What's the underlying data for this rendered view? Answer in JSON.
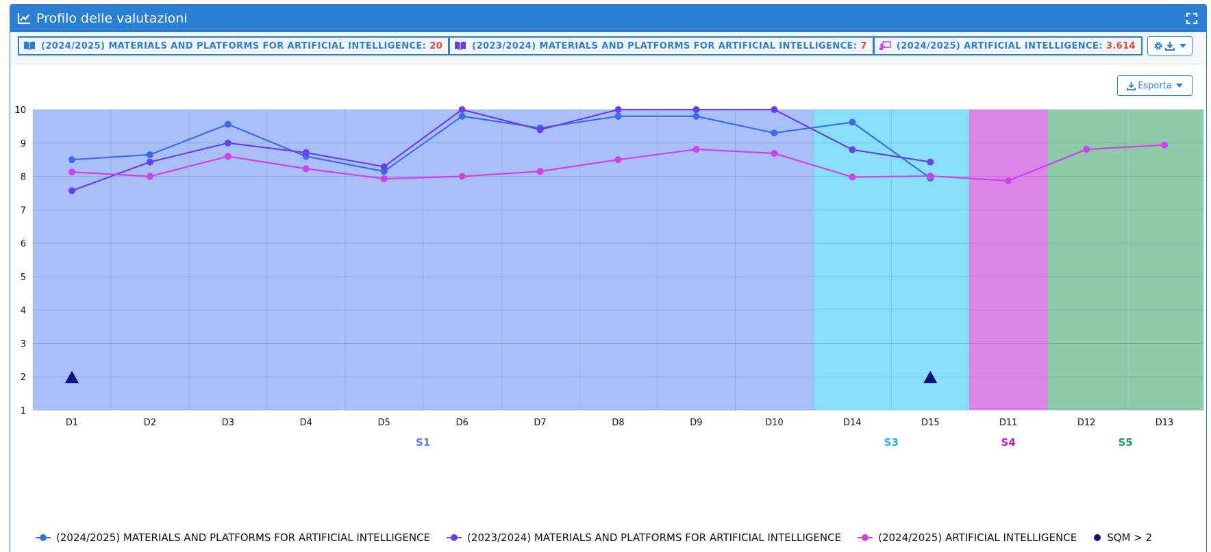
{
  "header": {
    "title": "Profilo delle valutazioni",
    "icon": "line-chart-icon",
    "fullscreen_icon": "expand-icon"
  },
  "toolbar": {
    "chips": [
      {
        "label": "(2024/2025) MATERIALS AND PLATFORMS FOR ARTIFICIAL INTELLIGENCE:",
        "value": "20",
        "icon": "book-icon"
      },
      {
        "label": "(2023/2024) MATERIALS AND PLATFORMS FOR ARTIFICIAL INTELLIGENCE:",
        "value": "7",
        "icon": "book-icon"
      },
      {
        "label": "(2024/2025) ARTIFICIAL INTELLIGENCE:",
        "value": "3.614",
        "icon": "teacher-icon"
      }
    ],
    "settings_icons": [
      "gear-icon",
      "download-icon",
      "caret-down-icon"
    ]
  },
  "export": {
    "label": "Esporta",
    "icon": "download-icon"
  },
  "colors": {
    "header": "#2a7fd4",
    "chip_value": "#e8463a",
    "series": [
      "#3b6cf0",
      "#6a3ee8",
      "#d13ff0"
    ],
    "sqm_marker": "#0a1580",
    "bands": [
      "#a9bff8",
      "#87dff8",
      "#dd84e8",
      "#8ecba8"
    ],
    "band_labels": [
      "#5b7bf0",
      "#1fb6ec",
      "#b51fcf",
      "#1d9a59"
    ]
  },
  "chart_data": {
    "type": "line",
    "categories": [
      "D1",
      "D2",
      "D3",
      "D4",
      "D5",
      "D6",
      "D7",
      "D8",
      "D9",
      "D10",
      "D14",
      "D15",
      "D11",
      "D12",
      "D13"
    ],
    "ylim": [
      1,
      10
    ],
    "yticks": [
      1,
      2,
      3,
      4,
      5,
      6,
      7,
      8,
      9,
      10
    ],
    "grid": true,
    "groups": [
      {
        "name": "S1",
        "from": "D1",
        "to": "D10"
      },
      {
        "name": "S3",
        "from": "D14",
        "to": "D15"
      },
      {
        "name": "S4",
        "from": "D11",
        "to": "D11"
      },
      {
        "name": "S5",
        "from": "D12",
        "to": "D13"
      }
    ],
    "series": [
      {
        "name": "(2024/2025) MATERIALS AND PLATFORMS FOR ARTIFICIAL INTELLIGENCE",
        "values": [
          8.5,
          8.65,
          9.56,
          8.6,
          8.15,
          9.8,
          9.45,
          9.8,
          9.8,
          9.3,
          9.62,
          7.95,
          null,
          null,
          null
        ]
      },
      {
        "name": "(2023/2024) MATERIALS AND PLATFORMS FOR ARTIFICIAL INTELLIGENCE",
        "values": [
          7.57,
          8.43,
          9.0,
          8.71,
          8.29,
          10.0,
          9.4,
          10.0,
          10.0,
          10.0,
          8.8,
          8.43,
          null,
          null,
          null
        ]
      },
      {
        "name": "(2024/2025) ARTIFICIAL INTELLIGENCE",
        "values": [
          8.13,
          8.0,
          8.6,
          8.23,
          7.93,
          8.0,
          8.15,
          8.5,
          8.81,
          8.69,
          7.98,
          8.01,
          7.87,
          8.81,
          8.94
        ]
      }
    ],
    "markers": {
      "name": "SQM > 2",
      "shape": "triangle",
      "points": [
        {
          "x": "D1",
          "y": 2
        },
        {
          "x": "D15",
          "y": 2
        }
      ]
    },
    "legend": "bottom"
  }
}
